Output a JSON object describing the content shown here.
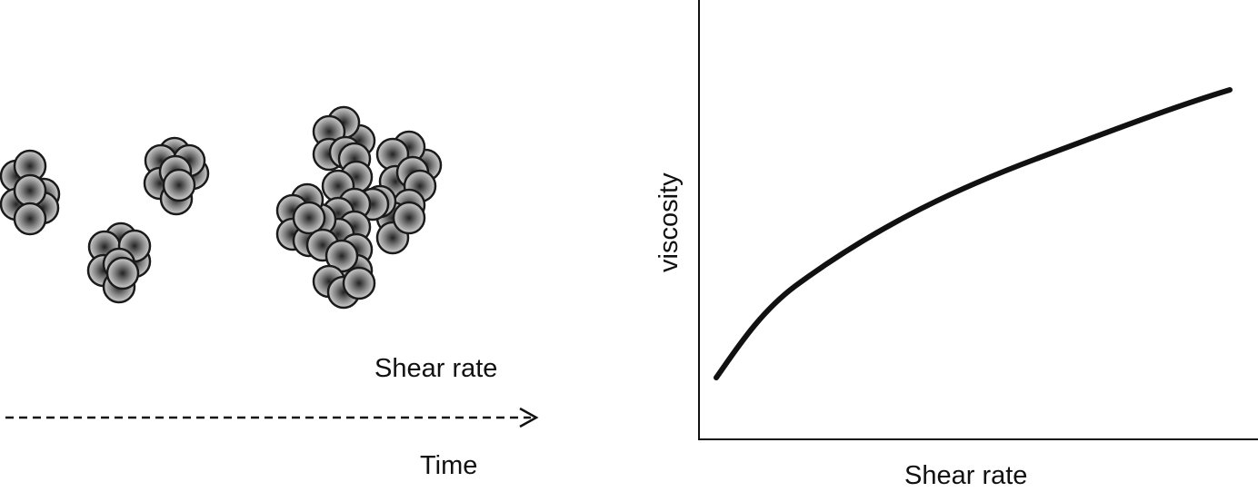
{
  "left_panel": {
    "shear_label": "Shear rate",
    "time_label": "Time"
  },
  "graph": {
    "y_axis_label": "viscosity",
    "x_axis_label": "Shear rate"
  },
  "colors": {
    "line": "#111111",
    "particle_edge": "#1a1a1a",
    "particle_center": "#2a2a2a",
    "particle_mid": "#8a8a8a",
    "particle_rim": "#dcdcdc"
  }
}
